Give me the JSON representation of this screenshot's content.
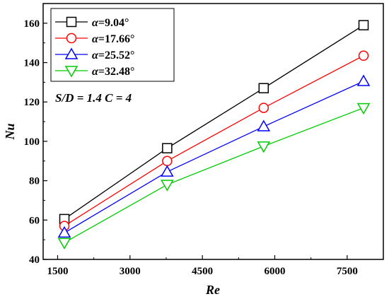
{
  "chart_data": {
    "type": "line",
    "xlabel": "Re",
    "ylabel": "Nu",
    "xlim": [
      1200,
      8250
    ],
    "ylim": [
      40,
      170
    ],
    "xticks": [
      1500,
      3000,
      4500,
      6000,
      7500
    ],
    "yticks": [
      40,
      60,
      80,
      100,
      120,
      140,
      160
    ],
    "x": [
      1640,
      3770,
      5770,
      7840
    ],
    "series": [
      {
        "name_prefix": "α",
        "name_value": "=9.04°",
        "color": "#000000",
        "marker": "square",
        "values": [
          60.5,
          96.5,
          127,
          159
        ]
      },
      {
        "name_prefix": "α",
        "name_value": "=17.66°",
        "color": "#ff0000",
        "marker": "circle",
        "values": [
          57,
          90,
          117,
          143.5
        ]
      },
      {
        "name_prefix": "α",
        "name_value": "=25.52°",
        "color": "#0000ff",
        "marker": "triangle-up",
        "values": [
          53.5,
          84.5,
          107.5,
          130.5
        ]
      },
      {
        "name_prefix": "α",
        "name_value": "=32.48°",
        "color": "#00cc00",
        "marker": "triangle-down",
        "values": [
          48.5,
          78,
          97.5,
          117
        ]
      }
    ],
    "annotation": "S/D = 1.4 C = 4",
    "legend_position": "top-left",
    "grid": false
  }
}
